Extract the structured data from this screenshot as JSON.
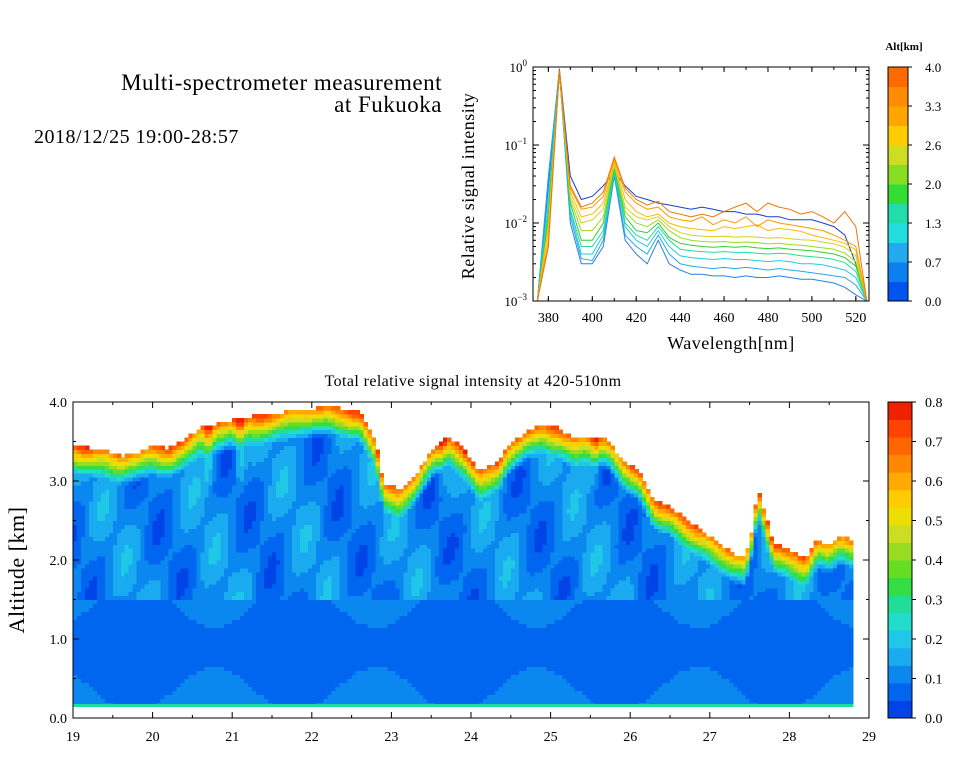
{
  "header": {
    "title_line1": "Multi-spectrometer measurement",
    "title_line2": "at Fukuoka",
    "timestamp": "2018/12/25 19:00-28:57"
  },
  "chart_data": [
    {
      "type": "line",
      "xlabel": "Wavelength[nm]",
      "ylabel": "Relative signal intensity",
      "xlim": [
        373,
        526
      ],
      "ylim": [
        0.001,
        1
      ],
      "yscale": "log",
      "x_ticks": [
        380,
        400,
        420,
        440,
        460,
        480,
        500,
        520
      ],
      "y_ticks": [
        {
          "value": 1,
          "base": "10",
          "exp": "0"
        },
        {
          "value": 0.1,
          "base": "10",
          "exp": "−1"
        },
        {
          "value": 0.01,
          "base": "10",
          "exp": "−2"
        },
        {
          "value": 0.001,
          "base": "10",
          "exp": "−3"
        }
      ],
      "colorbar": {
        "label": "Alt[km]",
        "tick_labels": [
          "4.0",
          "3.3",
          "2.6",
          "2.0",
          "1.3",
          "0.7",
          "0.0"
        ],
        "colors": [
          "#0055ee",
          "#0a7ff0",
          "#23aaee",
          "#22dddd",
          "#22ddaa",
          "#33dd33",
          "#88dd22",
          "#ccdd22",
          "#ffcc00",
          "#ffa500",
          "#ff8c00",
          "#ff6a00"
        ]
      },
      "x": [
        375,
        380,
        385,
        390,
        395,
        400,
        405,
        410,
        415,
        420,
        425,
        430,
        435,
        440,
        445,
        450,
        455,
        460,
        465,
        470,
        475,
        480,
        485,
        490,
        495,
        500,
        505,
        510,
        515,
        520,
        525
      ],
      "series": [
        {
          "altitude": 0.0,
          "color": "#1a3fcc",
          "values": [
            0.001,
            0.03,
            0.95,
            0.04,
            0.02,
            0.022,
            0.03,
            0.045,
            0.03,
            0.022,
            0.02,
            0.018,
            0.017,
            0.016,
            0.015,
            0.016,
            0.015,
            0.014,
            0.014,
            0.013,
            0.013,
            0.012,
            0.012,
            0.011,
            0.011,
            0.011,
            0.01,
            0.009,
            0.007,
            0.003,
            0.001
          ]
        },
        {
          "altitude": 0.4,
          "color": "#2a7fe0",
          "values": [
            0.001,
            0.04,
            0.92,
            0.01,
            0.003,
            0.003,
            0.005,
            0.04,
            0.006,
            0.004,
            0.003,
            0.006,
            0.003,
            0.0025,
            0.0022,
            0.0022,
            0.0021,
            0.0021,
            0.002,
            0.0021,
            0.002,
            0.002,
            0.0021,
            0.002,
            0.0019,
            0.0019,
            0.0018,
            0.0017,
            0.0015,
            0.0012,
            0.001
          ]
        },
        {
          "altitude": 0.8,
          "color": "#23aaee",
          "values": [
            0.001,
            0.035,
            0.9,
            0.012,
            0.0035,
            0.0033,
            0.006,
            0.042,
            0.007,
            0.005,
            0.004,
            0.007,
            0.004,
            0.003,
            0.0028,
            0.0027,
            0.0026,
            0.0027,
            0.0026,
            0.0027,
            0.0026,
            0.0025,
            0.0026,
            0.0025,
            0.0024,
            0.0023,
            0.0022,
            0.0021,
            0.002,
            0.0016,
            0.001
          ]
        },
        {
          "altitude": 1.2,
          "color": "#22ccdd",
          "values": [
            0.001,
            0.02,
            0.88,
            0.014,
            0.004,
            0.004,
            0.007,
            0.045,
            0.009,
            0.006,
            0.005,
            0.008,
            0.005,
            0.0038,
            0.0036,
            0.0035,
            0.0034,
            0.0035,
            0.0034,
            0.0034,
            0.0033,
            0.0032,
            0.0033,
            0.0032,
            0.003,
            0.003,
            0.0029,
            0.0027,
            0.0025,
            0.002,
            0.001
          ]
        },
        {
          "altitude": 1.6,
          "color": "#22dd99",
          "values": [
            0.001,
            0.015,
            0.86,
            0.015,
            0.005,
            0.005,
            0.008,
            0.047,
            0.01,
            0.007,
            0.006,
            0.009,
            0.006,
            0.0046,
            0.0044,
            0.0043,
            0.0042,
            0.0043,
            0.0042,
            0.0042,
            0.0041,
            0.004,
            0.0041,
            0.004,
            0.0038,
            0.0037,
            0.0036,
            0.0034,
            0.0031,
            0.0024,
            0.001
          ]
        },
        {
          "altitude": 2.0,
          "color": "#33cc33",
          "values": [
            0.001,
            0.012,
            0.85,
            0.018,
            0.006,
            0.006,
            0.01,
            0.05,
            0.012,
            0.008,
            0.0075,
            0.01,
            0.0065,
            0.0055,
            0.0052,
            0.005,
            0.0049,
            0.005,
            0.0049,
            0.005,
            0.0048,
            0.0047,
            0.0048,
            0.0046,
            0.0045,
            0.0044,
            0.0042,
            0.004,
            0.0036,
            0.0028,
            0.001
          ]
        },
        {
          "altitude": 2.4,
          "color": "#99dd22",
          "values": [
            0.001,
            0.01,
            0.85,
            0.02,
            0.008,
            0.008,
            0.012,
            0.055,
            0.014,
            0.01,
            0.009,
            0.011,
            0.008,
            0.0065,
            0.006,
            0.0058,
            0.0057,
            0.0058,
            0.0056,
            0.0057,
            0.0056,
            0.0054,
            0.0055,
            0.0053,
            0.0052,
            0.005,
            0.0048,
            0.0046,
            0.0041,
            0.0032,
            0.001
          ]
        },
        {
          "altitude": 2.8,
          "color": "#ddcc22",
          "values": [
            0.001,
            0.009,
            0.86,
            0.022,
            0.01,
            0.011,
            0.015,
            0.058,
            0.016,
            0.012,
            0.011,
            0.012,
            0.009,
            0.0075,
            0.007,
            0.0068,
            0.0067,
            0.0068,
            0.0066,
            0.0067,
            0.0066,
            0.0064,
            0.0065,
            0.0063,
            0.0061,
            0.006,
            0.0057,
            0.0054,
            0.0049,
            0.0038,
            0.001
          ]
        },
        {
          "altitude": 3.2,
          "color": "#ffbb00",
          "values": [
            0.001,
            0.008,
            0.88,
            0.025,
            0.012,
            0.013,
            0.018,
            0.06,
            0.02,
            0.014,
            0.012,
            0.013,
            0.01,
            0.009,
            0.0085,
            0.0082,
            0.008,
            0.009,
            0.0085,
            0.009,
            0.0095,
            0.008,
            0.0085,
            0.0082,
            0.0078,
            0.007,
            0.0065,
            0.006,
            0.0055,
            0.0045,
            0.001
          ]
        },
        {
          "altitude": 3.6,
          "color": "#ff9900",
          "values": [
            0.001,
            0.006,
            0.9,
            0.028,
            0.015,
            0.016,
            0.022,
            0.065,
            0.025,
            0.018,
            0.015,
            0.016,
            0.012,
            0.011,
            0.0105,
            0.012,
            0.0095,
            0.011,
            0.01,
            0.012,
            0.009,
            0.011,
            0.01,
            0.0095,
            0.009,
            0.0085,
            0.008,
            0.007,
            0.006,
            0.005,
            0.001
          ]
        },
        {
          "altitude": 4.0,
          "color": "#ee7700",
          "values": [
            0.001,
            0.005,
            0.92,
            0.03,
            0.016,
            0.018,
            0.025,
            0.07,
            0.028,
            0.02,
            0.017,
            0.019,
            0.014,
            0.013,
            0.012,
            0.013,
            0.012,
            0.014,
            0.016,
            0.018,
            0.014,
            0.018,
            0.016,
            0.015,
            0.013,
            0.014,
            0.012,
            0.01,
            0.014,
            0.009,
            0.001
          ]
        }
      ]
    },
    {
      "type": "heatmap",
      "title": "Total relative signal intensity at 420-510nm",
      "ylabel": "Altitude [km]",
      "xlim": [
        19,
        29
      ],
      "ylim": [
        0,
        4
      ],
      "x_ticks": [
        "19",
        "20",
        "21",
        "22",
        "23",
        "24",
        "25",
        "26",
        "27",
        "28",
        "29"
      ],
      "y_ticks": [
        "0.0",
        "1.0",
        "2.0",
        "3.0",
        "4.0"
      ],
      "data_end_hour": 28.8,
      "data_bottom_km": 0.15,
      "colorbar": {
        "range": [
          0,
          0.8
        ],
        "tick_labels": [
          "0.0",
          "0.1",
          "0.2",
          "0.3",
          "0.4",
          "0.5",
          "0.6",
          "0.7",
          "0.8"
        ],
        "colors": [
          "#0044e8",
          "#0066f0",
          "#0a88f0",
          "#1aaaf0",
          "#20c8e8",
          "#22ddcc",
          "#22dd99",
          "#33dd44",
          "#66dd22",
          "#99dd22",
          "#ccdd22",
          "#eedd00",
          "#ffcc00",
          "#ffaa00",
          "#ff8800",
          "#ff6600",
          "#ff4400",
          "#ee2200"
        ]
      },
      "cloud_base_km": [
        [
          19.0,
          3.45
        ],
        [
          19.2,
          3.4
        ],
        [
          19.4,
          3.38
        ],
        [
          19.6,
          3.3
        ],
        [
          19.8,
          3.32
        ],
        [
          20.0,
          3.42
        ],
        [
          20.2,
          3.4
        ],
        [
          20.4,
          3.5
        ],
        [
          20.6,
          3.65
        ],
        [
          20.8,
          3.7
        ],
        [
          21.0,
          3.75
        ],
        [
          21.2,
          3.8
        ],
        [
          21.4,
          3.82
        ],
        [
          21.6,
          3.85
        ],
        [
          21.8,
          3.88
        ],
        [
          22.0,
          3.9
        ],
        [
          22.2,
          3.92
        ],
        [
          22.4,
          3.9
        ],
        [
          22.6,
          3.85
        ],
        [
          22.8,
          3.5
        ],
        [
          22.9,
          2.95
        ],
        [
          23.1,
          2.88
        ],
        [
          23.3,
          3.05
        ],
        [
          23.5,
          3.35
        ],
        [
          23.7,
          3.55
        ],
        [
          23.9,
          3.4
        ],
        [
          24.1,
          3.1
        ],
        [
          24.3,
          3.2
        ],
        [
          24.5,
          3.45
        ],
        [
          24.7,
          3.6
        ],
        [
          24.9,
          3.7
        ],
        [
          25.1,
          3.65
        ],
        [
          25.3,
          3.5
        ],
        [
          25.5,
          3.55
        ],
        [
          25.7,
          3.5
        ],
        [
          25.9,
          3.25
        ],
        [
          26.1,
          3.1
        ],
        [
          26.3,
          2.75
        ],
        [
          26.5,
          2.65
        ],
        [
          26.7,
          2.5
        ],
        [
          26.9,
          2.35
        ],
        [
          27.1,
          2.2
        ],
        [
          27.3,
          2.05
        ],
        [
          27.45,
          2.0
        ],
        [
          27.55,
          2.45
        ],
        [
          27.6,
          2.9
        ],
        [
          27.7,
          2.55
        ],
        [
          27.8,
          2.2
        ],
        [
          28.0,
          2.1
        ],
        [
          28.2,
          2.0
        ],
        [
          28.35,
          2.25
        ],
        [
          28.5,
          2.15
        ],
        [
          28.65,
          2.28
        ],
        [
          28.8,
          2.25
        ]
      ],
      "bright_streaks_hour": [
        20.7,
        21.1,
        23.65,
        24.35,
        25.55,
        27.6
      ]
    }
  ]
}
